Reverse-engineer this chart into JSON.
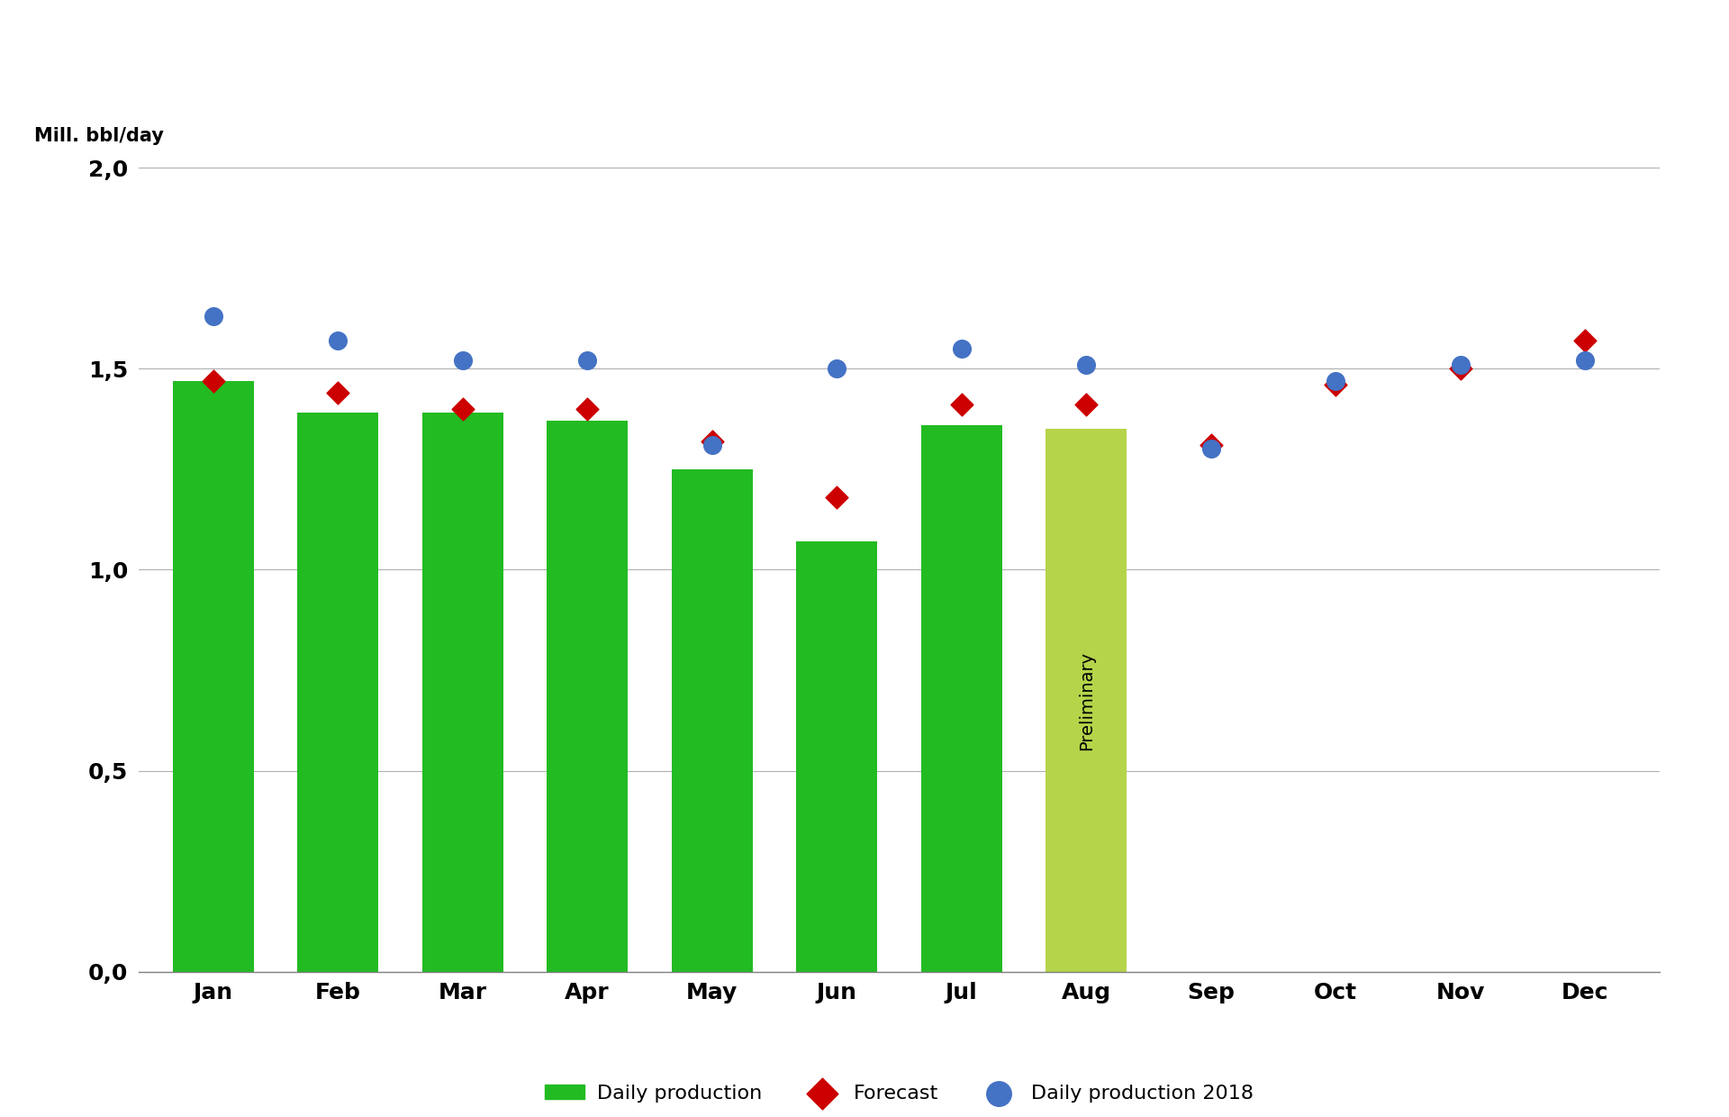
{
  "months": [
    "Jan",
    "Feb",
    "Mar",
    "Apr",
    "May",
    "Jun",
    "Jul",
    "Aug",
    "Sep",
    "Oct",
    "Nov",
    "Dec"
  ],
  "daily_production": [
    1.47,
    1.39,
    1.39,
    1.37,
    1.25,
    1.07,
    1.36,
    1.35,
    null,
    null,
    null,
    null
  ],
  "forecast": [
    1.47,
    1.44,
    1.4,
    1.4,
    1.32,
    1.18,
    1.41,
    1.41,
    1.31,
    1.46,
    1.5,
    1.57
  ],
  "daily_production_2018": [
    1.63,
    1.57,
    1.52,
    1.52,
    1.31,
    1.5,
    1.55,
    1.51,
    1.3,
    1.47,
    1.51,
    1.52
  ],
  "bar_color_regular": "#22bb22",
  "bar_color_preliminary": "#b5d44a",
  "preliminary_label": "Preliminary",
  "ylabel": "Mill. bbl/day",
  "ylim_min": 0.0,
  "ylim_max": 2.0,
  "yticks": [
    0.0,
    0.5,
    1.0,
    1.5,
    2.0
  ],
  "ytick_labels": [
    "0,0",
    "0,5",
    "1,0",
    "1,5",
    "2,0"
  ],
  "background_color": "#ffffff",
  "grid_color": "#b0b0b0",
  "forecast_color": "#cc0000",
  "production2018_color": "#4472c4",
  "legend_labels": [
    "Daily production",
    "Forecast",
    "Daily production 2018"
  ],
  "tick_fontsize": 18,
  "ylabel_fontsize": 15,
  "legend_fontsize": 16,
  "bar_width": 0.65
}
